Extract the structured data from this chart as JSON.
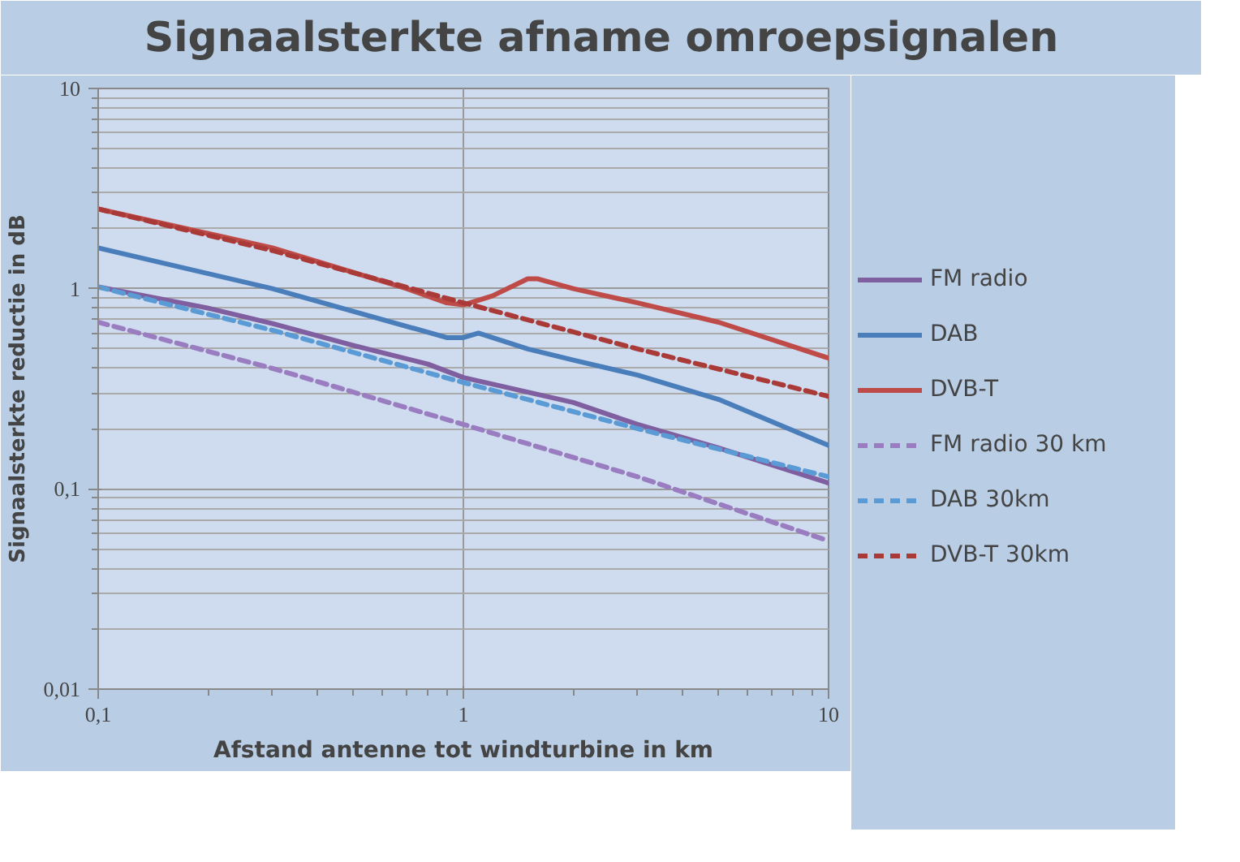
{
  "chart_data": {
    "type": "line",
    "title": "Signaalsterkte afname omroepsignalen",
    "xlabel": "Afstand antenne tot windturbine in km",
    "ylabel": "Signaalsterkte reductie in dB",
    "log": "xy",
    "xlim": [
      0.1,
      10
    ],
    "ylim": [
      0.01,
      10
    ],
    "xticks": [
      {
        "value": 0.1,
        "label": "0,1"
      },
      1,
      10
    ],
    "yticks": [
      {
        "value": 0.01,
        "label": "0,01"
      },
      {
        "value": 0.1,
        "label": "0,1"
      },
      1,
      10
    ],
    "grid": true,
    "legend": "right",
    "series": [
      {
        "name": "FM radio",
        "color": "#7f5fa0",
        "line_style": "solid",
        "x": [
          0.1,
          0.2,
          0.3,
          0.5,
          0.8,
          1,
          2,
          3,
          5,
          10
        ],
        "values": [
          1.02,
          0.8,
          0.67,
          0.52,
          0.42,
          0.36,
          0.27,
          0.21,
          0.16,
          0.107
        ]
      },
      {
        "name": "DAB",
        "color": "#4a7ebb",
        "line_style": "solid",
        "x": [
          0.1,
          0.3,
          0.9,
          1,
          1.1,
          1.5,
          2,
          3,
          5,
          10
        ],
        "values": [
          1.6,
          1.0,
          0.57,
          0.57,
          0.6,
          0.5,
          0.44,
          0.37,
          0.28,
          0.165
        ]
      },
      {
        "name": "DVB-T",
        "color": "#be4b48",
        "line_style": "solid",
        "x": [
          0.1,
          0.3,
          0.7,
          0.9,
          1,
          1.2,
          1.5,
          1.6,
          2,
          3,
          5,
          10
        ],
        "values": [
          2.5,
          1.6,
          1.0,
          0.85,
          0.83,
          0.92,
          1.12,
          1.12,
          1.0,
          0.85,
          0.68,
          0.45
        ]
      },
      {
        "name": "FM radio 30 km",
        "color": "#9a7cc0",
        "line_style": "dashed",
        "x": [
          0.1,
          0.3,
          1,
          3,
          10
        ],
        "values": [
          0.68,
          0.4,
          0.21,
          0.115,
          0.055
        ]
      },
      {
        "name": "DAB 30km",
        "color": "#5b9bd5",
        "line_style": "dashed",
        "x": [
          0.1,
          0.3,
          1,
          3,
          10
        ],
        "values": [
          1.02,
          0.62,
          0.34,
          0.2,
          0.115
        ]
      },
      {
        "name": "DVB-T 30km",
        "color": "#a93a37",
        "line_style": "dashed",
        "x": [
          0.1,
          0.3,
          1,
          3,
          10
        ],
        "values": [
          2.5,
          1.55,
          0.85,
          0.5,
          0.29
        ]
      }
    ]
  }
}
